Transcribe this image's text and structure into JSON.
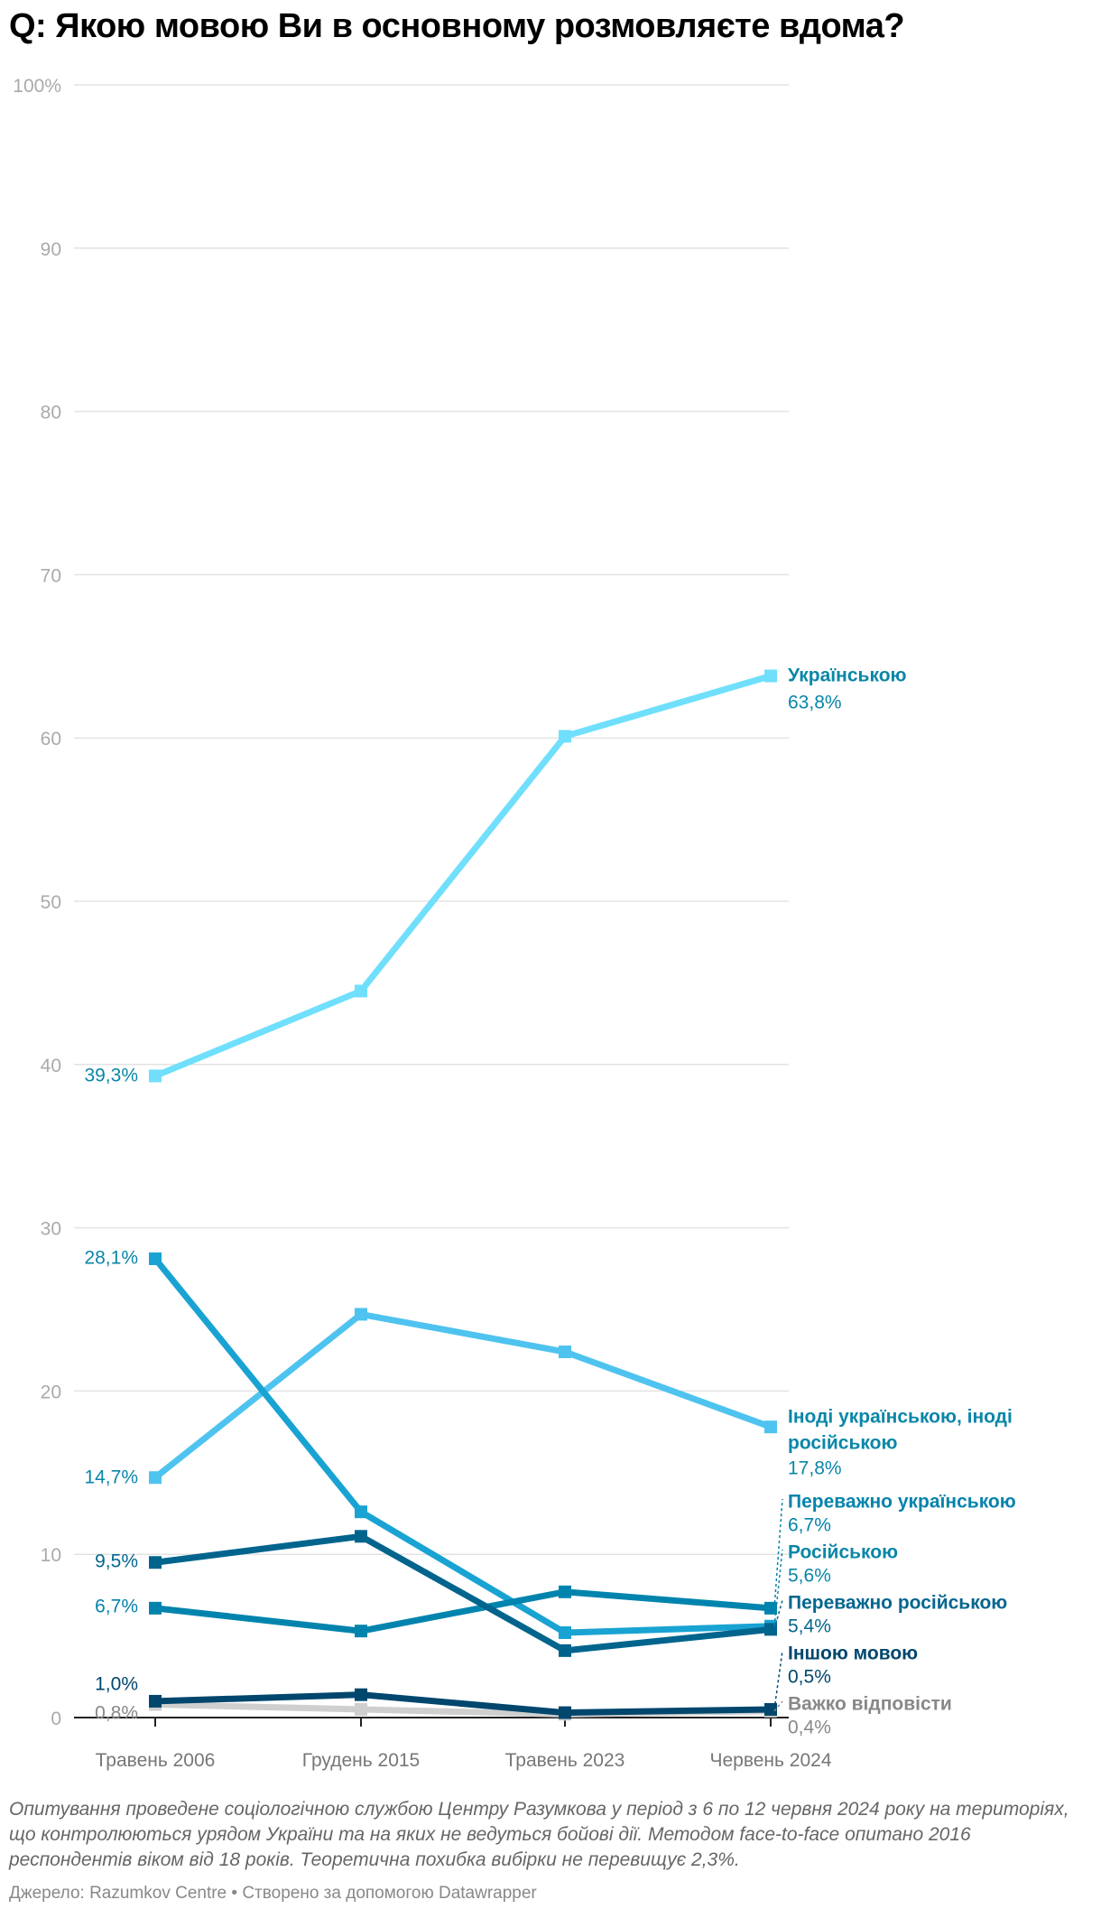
{
  "title": "Q: Якою мовою Ви в основному розмовляєте вдома?",
  "notes": "Опитування проведене соціологічною службою Центру Разумкова у період з 6 по 12 червня 2024 року на територіях, що контролюються урядом України та на яких не ведуться бойові дії. Методом face-to-face опитано 2016 респондентів віком від 18 років. Теоретична похибка вибірки не перевищує 2,3%.",
  "source": "Джерело: Razumkov Centre • Створено за допомогою Datawrapper",
  "chart_data": {
    "type": "line",
    "title": "Q: Якою мовою Ви в основному розмовляєте вдома?",
    "x": [
      "Травень 2006",
      "Грудень 2015",
      "Травень 2023",
      "Червень 2024"
    ],
    "ylim": [
      0,
      100
    ],
    "yticks": [
      0,
      10,
      20,
      30,
      40,
      50,
      60,
      70,
      80,
      90,
      100
    ],
    "ytick_labels": [
      "0",
      "10",
      "20",
      "30",
      "40",
      "50",
      "60",
      "70",
      "80",
      "90",
      "100%"
    ],
    "grid": true,
    "series": [
      {
        "name": "Українською",
        "values": [
          39.3,
          44.5,
          60.1,
          63.8
        ],
        "color": "#6fdffc",
        "label_color": "#0a86a8",
        "start_label": "39,3%",
        "end_label": "63,8%"
      },
      {
        "name": "Іноді українською, іноді російською",
        "name_lines": [
          "Іноді українською, іноді",
          "російською"
        ],
        "values": [
          14.7,
          24.7,
          22.4,
          17.8
        ],
        "color": "#4fc3ef",
        "label_color": "#0a86a8",
        "start_label": "14,7%",
        "end_label": "17,8%"
      },
      {
        "name": "Російською",
        "values": [
          28.1,
          12.6,
          5.2,
          5.6
        ],
        "color": "#19a3d2",
        "label_color": "#0a86a8",
        "start_label": "28,1%",
        "end_label": "5,6%"
      },
      {
        "name": "Переважно українською",
        "values": [
          6.7,
          5.3,
          7.7,
          6.7
        ],
        "color": "#0084ad",
        "label_color": "#0583ac",
        "start_label": "6,7%",
        "end_label": "6,7%"
      },
      {
        "name": "Переважно російською",
        "values": [
          9.5,
          11.1,
          4.1,
          5.4
        ],
        "color": "#00648d",
        "label_color": "#04668f",
        "start_label": "9,5%",
        "end_label": "5,4%"
      },
      {
        "name": "Іншою мовою",
        "values": [
          1.0,
          1.4,
          0.3,
          0.5
        ],
        "color": "#00466d",
        "label_color": "#00466d",
        "start_label": "1,0%",
        "end_label": "0,5%"
      },
      {
        "name": "Важко відповісти",
        "values": [
          0.8,
          0.5,
          0.2,
          0.4
        ],
        "color": "#cfcfcf",
        "label_color": "#888888",
        "start_label": "0,8%",
        "end_label": "0,4%"
      }
    ]
  }
}
